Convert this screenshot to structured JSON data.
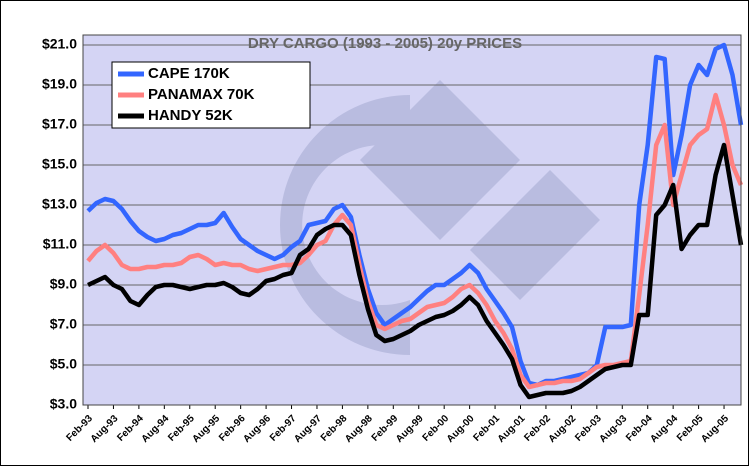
{
  "chart_data": {
    "type": "line",
    "title": "DRY CARGO (1993 - 2005) 20y PRICES",
    "categories": [
      "Feb-93",
      null,
      null,
      "Aug-93",
      null,
      null,
      "Feb-94",
      null,
      null,
      "Aug-94",
      null,
      null,
      "Feb-95",
      null,
      null,
      "Aug-95",
      null,
      null,
      "Feb-96",
      null,
      null,
      "Aug-96",
      null,
      null,
      "Feb-97",
      null,
      null,
      "Aug-97",
      null,
      null,
      "Feb-98",
      null,
      null,
      "Aug-98",
      null,
      null,
      "Feb-99",
      null,
      null,
      "Aug-99",
      null,
      null,
      "Feb-00",
      null,
      null,
      "Aug-00",
      null,
      null,
      "Feb-01",
      null,
      null,
      "Aug-01",
      null,
      null,
      "Feb-02",
      null,
      null,
      "Aug-02",
      null,
      null,
      "Feb-03",
      null,
      null,
      "Aug-03",
      null,
      null,
      "Feb-04",
      null,
      null,
      "Aug-04",
      null,
      null,
      "Feb-05",
      null,
      null,
      "Aug-05",
      null,
      null
    ],
    "series": [
      {
        "name": "CAPE 170K",
        "color": "#3366ff",
        "values": [
          12.7,
          13.1,
          13.3,
          13.2,
          12.8,
          12.2,
          11.7,
          11.4,
          11.2,
          11.3,
          11.5,
          11.6,
          11.8,
          12.0,
          12.0,
          12.1,
          12.6,
          11.9,
          11.3,
          11.0,
          10.7,
          10.5,
          10.3,
          10.5,
          10.9,
          11.2,
          12.0,
          12.1,
          12.2,
          12.8,
          13.0,
          12.4,
          10.5,
          8.8,
          7.6,
          7.0,
          7.3,
          7.6,
          7.9,
          8.3,
          8.7,
          9.0,
          9.0,
          9.3,
          9.6,
          10.0,
          9.6,
          8.8,
          8.2,
          7.6,
          6.9,
          5.2,
          4.1,
          4.0,
          4.2,
          4.2,
          4.3,
          4.4,
          4.5,
          4.6,
          5.0,
          6.9,
          6.9,
          6.9,
          7.0,
          13.0,
          16.0,
          20.4,
          20.3,
          14.5,
          16.5,
          19.0,
          20.0,
          19.5,
          20.8,
          21.0,
          19.5,
          17.0
        ]
      },
      {
        "name": "PANAMAX 70K",
        "color": "#ff8080",
        "values": [
          10.2,
          10.7,
          11.0,
          10.6,
          10.0,
          9.8,
          9.8,
          9.9,
          9.9,
          10.0,
          10.0,
          10.1,
          10.4,
          10.5,
          10.3,
          10.0,
          10.1,
          10.0,
          10.0,
          9.8,
          9.7,
          9.8,
          9.9,
          10.0,
          10.0,
          10.1,
          10.5,
          11.0,
          11.2,
          12.0,
          12.5,
          12.0,
          10.0,
          8.2,
          7.0,
          6.8,
          7.0,
          7.2,
          7.3,
          7.6,
          7.9,
          8.0,
          8.1,
          8.4,
          8.8,
          9.0,
          8.6,
          8.0,
          7.2,
          6.6,
          5.8,
          4.5,
          3.9,
          4.0,
          4.1,
          4.1,
          4.2,
          4.2,
          4.3,
          4.6,
          4.9,
          5.0,
          5.0,
          5.1,
          5.2,
          8.5,
          12.0,
          16.0,
          17.0,
          13.0,
          14.5,
          16.0,
          16.5,
          16.8,
          18.5,
          17.0,
          15.0,
          14.0
        ]
      },
      {
        "name": "HANDY 52K",
        "color": "#000000",
        "values": [
          9.0,
          9.2,
          9.4,
          9.0,
          8.8,
          8.2,
          8.0,
          8.5,
          8.9,
          9.0,
          9.0,
          8.9,
          8.8,
          8.9,
          9.0,
          9.0,
          9.1,
          8.9,
          8.6,
          8.5,
          8.8,
          9.2,
          9.3,
          9.5,
          9.6,
          10.5,
          10.8,
          11.5,
          11.8,
          12.0,
          12.0,
          11.5,
          9.5,
          7.8,
          6.5,
          6.2,
          6.3,
          6.5,
          6.7,
          7.0,
          7.2,
          7.4,
          7.5,
          7.7,
          8.0,
          8.4,
          8.0,
          7.2,
          6.6,
          6.0,
          5.3,
          4.0,
          3.4,
          3.5,
          3.6,
          3.6,
          3.6,
          3.7,
          3.9,
          4.2,
          4.5,
          4.8,
          4.9,
          5.0,
          5.0,
          7.5,
          7.5,
          12.5,
          13.0,
          14.0,
          10.8,
          11.5,
          12.0,
          12.0,
          14.5,
          16.0,
          13.5,
          11.0
        ]
      }
    ],
    "ylim": [
      3,
      21
    ],
    "yticks": [
      {
        "value": 3,
        "label": "$3.0"
      },
      {
        "value": 5,
        "label": "$5.0"
      },
      {
        "value": 7,
        "label": "$7.0"
      },
      {
        "value": 9,
        "label": "$9.0"
      },
      {
        "value": 11,
        "label": "$11.0"
      },
      {
        "value": 13,
        "label": "$13.0"
      },
      {
        "value": 15,
        "label": "$15.0"
      },
      {
        "value": 17,
        "label": "$17.0"
      },
      {
        "value": 19,
        "label": "$19.0"
      },
      {
        "value": 21,
        "label": "$21.0"
      }
    ],
    "grid": true,
    "legend": "top-left"
  }
}
